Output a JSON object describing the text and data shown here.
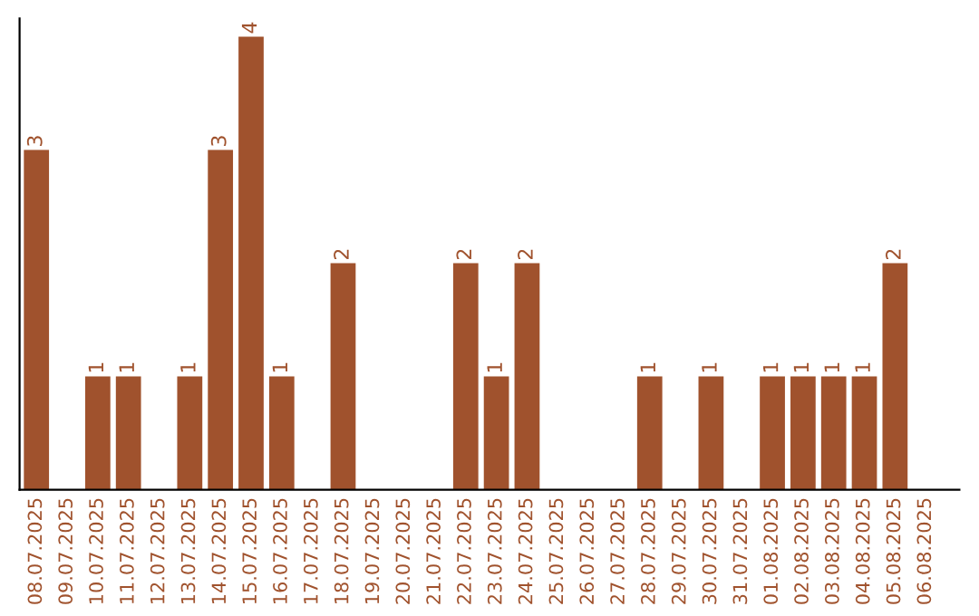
{
  "chart_data": {
    "type": "bar",
    "categories": [
      "08.07.2025",
      "09.07.2025",
      "10.07.2025",
      "11.07.2025",
      "12.07.2025",
      "13.07.2025",
      "14.07.2025",
      "15.07.2025",
      "16.07.2025",
      "17.07.2025",
      "18.07.2025",
      "19.07.2025",
      "20.07.2025",
      "21.07.2025",
      "22.07.2025",
      "23.07.2025",
      "24.07.2025",
      "25.07.2025",
      "26.07.2025",
      "27.07.2025",
      "28.07.2025",
      "29.07.2025",
      "30.07.2025",
      "31.07.2025",
      "01.08.2025",
      "02.08.2025",
      "03.08.2025",
      "04.08.2025",
      "05.08.2025",
      "06.08.2025"
    ],
    "values": [
      3,
      0,
      1,
      1,
      0,
      1,
      3,
      4,
      1,
      0,
      2,
      0,
      0,
      0,
      2,
      1,
      2,
      0,
      0,
      0,
      1,
      0,
      1,
      0,
      1,
      1,
      1,
      1,
      2,
      0
    ],
    "value_labels": [
      "3",
      null,
      "1",
      "1",
      null,
      "1",
      "3",
      "4",
      "1",
      null,
      "2",
      null,
      null,
      null,
      "2",
      "1",
      "2",
      null,
      null,
      null,
      "1",
      null,
      "1",
      null,
      "1",
      "1",
      "1",
      "1",
      "2",
      null
    ],
    "color": "#a0522d",
    "grid": false,
    "legend": false
  }
}
